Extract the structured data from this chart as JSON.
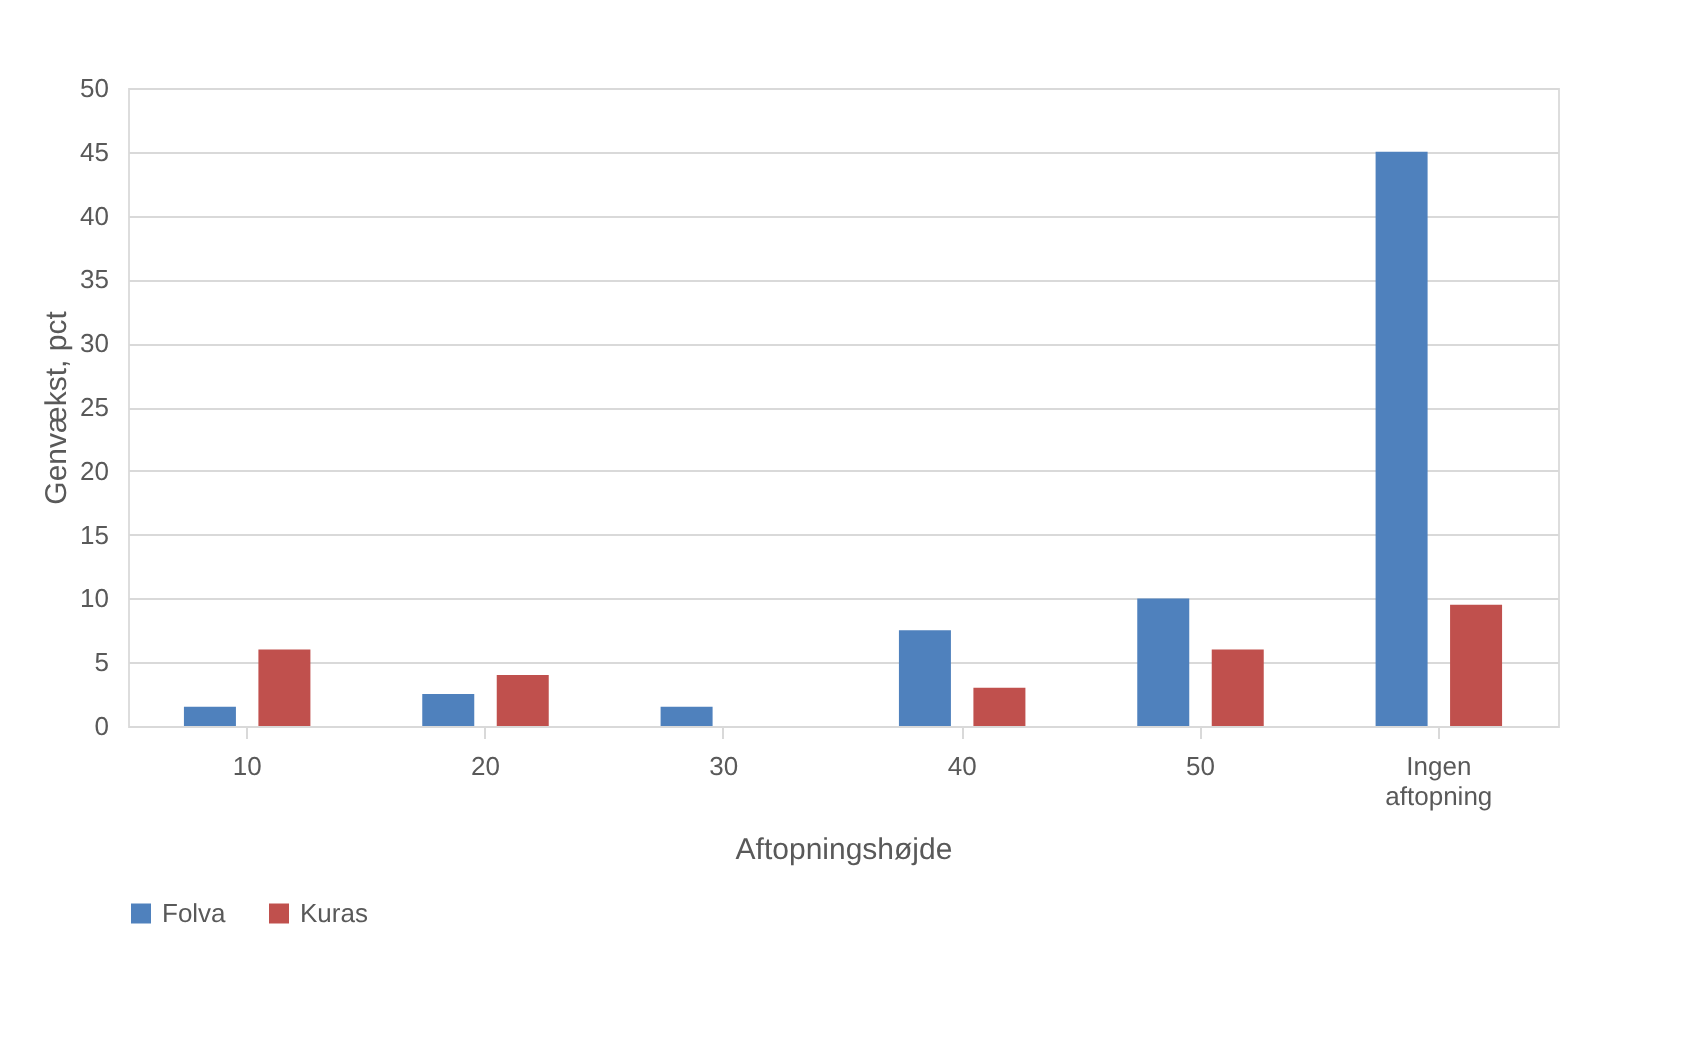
{
  "chart_data": {
    "type": "bar",
    "xlabel": "Aftopningshøjde",
    "ylabel": "Genvækst, pct",
    "categories": [
      "10",
      "20",
      "30",
      "40",
      "50",
      "Ingen aftopning"
    ],
    "series": [
      {
        "name": "Folva",
        "color": "#4f81bd",
        "values": [
          1.5,
          2.5,
          1.5,
          7.5,
          10,
          45
        ]
      },
      {
        "name": "Kuras",
        "color": "#c0504d",
        "values": [
          6,
          4,
          0,
          3,
          6,
          9.5
        ]
      }
    ],
    "ylim": [
      0,
      50
    ],
    "yticks": [
      0,
      5,
      10,
      15,
      20,
      25,
      30,
      35,
      40,
      45,
      50
    ],
    "grid": "y",
    "legend": "bottom"
  }
}
